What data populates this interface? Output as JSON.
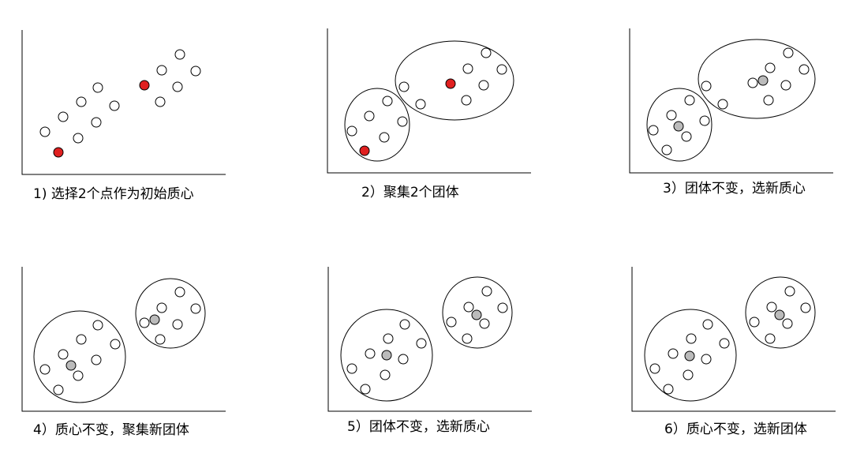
{
  "colors": {
    "axis": "#000000",
    "outline": "#000000",
    "hollow": "#ffffff",
    "red": "#e02020",
    "gray": "#bbbbbb"
  },
  "panels": [
    {
      "caption": "1) 选择2个点作为初始质心"
    },
    {
      "caption": "2）聚集2个团体"
    },
    {
      "caption": "3）团体不变，选新质心"
    },
    {
      "caption": "4）质心不变，聚集新团体"
    },
    {
      "caption": "5）团体不变，选新质心"
    },
    {
      "caption": "6）质心不变，选新团体"
    }
  ]
}
